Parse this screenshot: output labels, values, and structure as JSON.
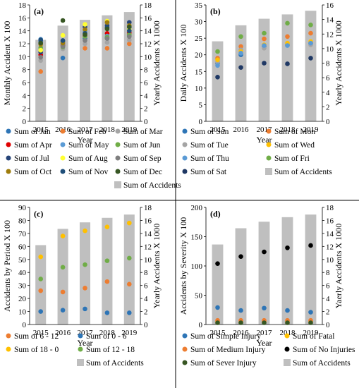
{
  "chart_data": [
    {
      "type": "bar",
      "panel_label": "(a)",
      "categories": [
        "2015",
        "2016",
        "2017",
        "2018",
        "2019"
      ],
      "xlabel": "Year",
      "ylabel": "Monthly  Accident X 100",
      "y2label": "Yearly Accidents X 1000",
      "ylim": [
        0,
        18
      ],
      "yticks": [
        0,
        2,
        4,
        6,
        8,
        10,
        12,
        14,
        16,
        18
      ],
      "y2lim": [
        0,
        18
      ],
      "y2ticks": [
        0,
        2,
        4,
        6,
        8,
        10,
        12,
        14,
        16,
        18
      ],
      "bars": {
        "name": "Sum of Accidents",
        "color": "#bfbfbf",
        "values": [
          12.6,
          14.8,
          15.7,
          16.4,
          16.9
        ]
      },
      "series": [
        {
          "name": "Sum of Jan",
          "color": "#2e75b6",
          "values": [
            12.4,
            9.8,
            12.8,
            12.9,
            13.2
          ]
        },
        {
          "name": "Sum of Feb",
          "color": "#ed7d31",
          "values": [
            7.7,
            11.8,
            11.3,
            11.3,
            12.0
          ]
        },
        {
          "name": "Sum of Mar",
          "color": "#a5a5a5",
          "values": [
            9.4,
            11.2,
            12.0,
            12.2,
            12.6
          ]
        },
        {
          "name": "Sum of Apr",
          "color": "#e00000",
          "values": [
            10.3,
            11.8,
            13.2,
            13.6,
            13.7
          ]
        },
        {
          "name": "Sum of May",
          "color": "#5b9bd5",
          "values": [
            12.7,
            12.0,
            13.9,
            13.2,
            14.5
          ]
        },
        {
          "name": "Sum of Jun",
          "color": "#70ad47",
          "values": [
            11.4,
            11.5,
            13.1,
            13.0,
            13.4
          ]
        },
        {
          "name": "Sum of Jul",
          "color": "#264478",
          "values": [
            10.7,
            12.4,
            14.6,
            14.8,
            15.3
          ]
        },
        {
          "name": "Sum of Aug",
          "color": "#ffff33",
          "values": [
            11.0,
            13.3,
            15.0,
            15.5,
            14.2
          ]
        },
        {
          "name": "Sum of Sep",
          "color": "#7f7f7f",
          "values": [
            9.9,
            11.6,
            12.5,
            12.8,
            13.1
          ]
        },
        {
          "name": "Sum of Oct",
          "color": "#9e7c0c",
          "values": [
            11.9,
            12.1,
            14.2,
            15.3,
            14.8
          ]
        },
        {
          "name": "Sum of Nov",
          "color": "#1f4e79",
          "values": [
            12.6,
            12.5,
            13.6,
            14.5,
            14.0
          ]
        },
        {
          "name": "Sum of Dec",
          "color": "#375623",
          "values": [
            12.1,
            15.6,
            13.4,
            14.3,
            14.6
          ]
        }
      ]
    },
    {
      "type": "bar",
      "panel_label": "(b)",
      "categories": [
        "2015",
        "2016",
        "2017",
        "2018",
        "2019"
      ],
      "xlabel": "Year",
      "ylabel": "Daily Accidents X 100",
      "y2label": "Yearly Accidents X 1000",
      "ylim": [
        0,
        35
      ],
      "yticks": [
        0,
        5,
        10,
        15,
        20,
        25,
        30,
        35
      ],
      "y2lim": [
        0,
        16
      ],
      "y2ticks": [
        0,
        2,
        4,
        6,
        8,
        10,
        12,
        14,
        16
      ],
      "bars": {
        "name": "Sum of Accidents",
        "color": "#bfbfbf",
        "values": [
          11.0,
          13.2,
          14.1,
          14.7,
          15.2
        ]
      },
      "series": [
        {
          "name": "Sum of Sun",
          "color": "#2e75b6",
          "values": [
            17.5,
            20.0,
            22.5,
            23.0,
            23.5
          ]
        },
        {
          "name": "Sum of Mon",
          "color": "#ed7d31",
          "values": [
            19.0,
            22.5,
            24.8,
            25.5,
            26.5
          ]
        },
        {
          "name": "Sum of Tue",
          "color": "#a5a5a5",
          "values": [
            17.8,
            21.5,
            22.0,
            23.0,
            23.0
          ]
        },
        {
          "name": "Sum of Wed",
          "color": "#ffc000",
          "values": [
            18.5,
            21.0,
            23.0,
            23.5,
            24.0
          ]
        },
        {
          "name": "Sum of Thu",
          "color": "#5b9bd5",
          "values": [
            16.8,
            20.5,
            22.8,
            22.8,
            23.5
          ]
        },
        {
          "name": "Sum of Fri",
          "color": "#70ad47",
          "values": [
            21.0,
            25.5,
            26.5,
            29.5,
            29.0
          ]
        },
        {
          "name": "Sum of Sat",
          "color": "#1f3864",
          "values": [
            13.3,
            16.2,
            17.5,
            17.3,
            19.0
          ]
        }
      ]
    },
    {
      "type": "bar",
      "panel_label": "(c)",
      "categories": [
        "2015",
        "2016",
        "2017",
        "2018",
        "2019"
      ],
      "xlabel": "Year",
      "ylabel": "Accidents by Period X 100",
      "y2label": "Yearly Accidents X 1000",
      "ylim": [
        0,
        90
      ],
      "yticks": [
        0,
        10,
        20,
        30,
        40,
        50,
        60,
        70,
        80,
        90
      ],
      "y2lim": [
        0,
        18
      ],
      "y2ticks": [
        0,
        2,
        4,
        6,
        8,
        10,
        12,
        14,
        16,
        18
      ],
      "bars": {
        "name": "Sum of Accidents",
        "color": "#bfbfbf",
        "values": [
          12.2,
          14.7,
          15.7,
          16.4,
          16.9
        ]
      },
      "series": [
        {
          "name": "Sum of 6 - 12",
          "color": "#ed7d31",
          "values": [
            26,
            25,
            28,
            33,
            31
          ]
        },
        {
          "name": "Sum of 0 -  6",
          "color": "#2e75b6",
          "values": [
            10,
            11,
            12,
            9,
            9
          ]
        },
        {
          "name": "Sum of 18 - 0",
          "color": "#ffc000",
          "values": [
            52,
            68,
            72,
            75,
            78
          ]
        },
        {
          "name": "Sum of 12 - 18",
          "color": "#70ad47",
          "values": [
            35,
            44,
            46,
            49,
            51
          ]
        }
      ]
    },
    {
      "type": "bar",
      "panel_label": "(d)",
      "categories": [
        "2015",
        "2016",
        "2017",
        "2018",
        "2019"
      ],
      "xlabel": "Year",
      "ylabel": "Accidents by Severity X 100",
      "y2label": "Yaerly Accidents X 1000",
      "ylim": [
        0,
        200
      ],
      "yticks": [
        0,
        50,
        100,
        150,
        200
      ],
      "y2lim": [
        0,
        18
      ],
      "y2ticks": [
        0,
        2,
        4,
        6,
        8,
        10,
        12,
        14,
        16,
        18
      ],
      "bars": {
        "name": "Sum of Accidents",
        "color": "#bfbfbf",
        "values": [
          12.3,
          14.8,
          15.8,
          16.5,
          16.9
        ]
      },
      "series": [
        {
          "name": "Sum of Simple Injury",
          "color": "#2e75b6",
          "values": [
            29,
            24,
            28,
            24,
            21
          ]
        },
        {
          "name": "Sum of Fatal",
          "color": "#ffc000",
          "values": [
            5,
            4,
            5,
            5,
            5
          ]
        },
        {
          "name": "Sum of Medium Injury",
          "color": "#ed7d31",
          "values": [
            7,
            7,
            7,
            7,
            7
          ]
        },
        {
          "name": "Sum of No Injuries",
          "color": "#000000",
          "values": [
            104,
            116,
            124,
            131,
            135
          ]
        },
        {
          "name": "Sum of Sever Injury",
          "color": "#375623",
          "values": [
            3,
            3,
            3,
            3,
            3
          ]
        }
      ]
    }
  ]
}
